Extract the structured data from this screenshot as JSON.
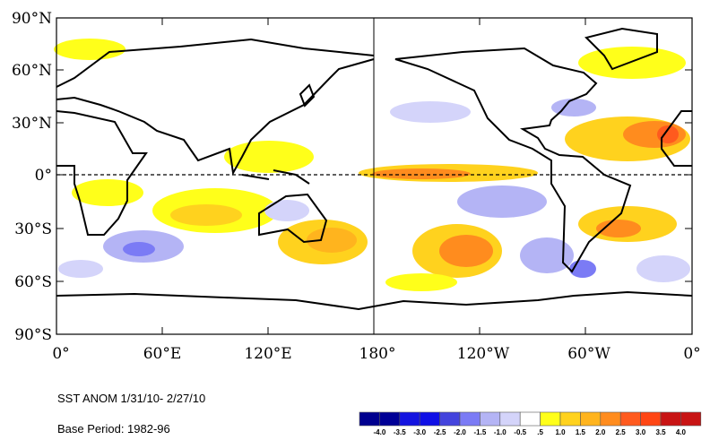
{
  "map": {
    "lat_labels": [
      "90°N",
      "60°N",
      "30°N",
      "0°",
      "30°S",
      "60°S",
      "90°S"
    ],
    "lon_labels": [
      "0°",
      "60°E",
      "120°E",
      "180°",
      "120°W",
      "60°W",
      "0°"
    ]
  },
  "caption": {
    "title": "SST ANOM  1/31/10- 2/27/10",
    "base_period": "Base Period: 1982-96"
  },
  "colorbar": {
    "colors": [
      "#00008f",
      "#000096",
      "#1414e0",
      "#1010e6",
      "#4444dd",
      "#7b7bf5",
      "#b4b4f5",
      "#d4d4fa",
      "#ffffff",
      "#ffff1a",
      "#ffd21e",
      "#ffb41e",
      "#ff8c1e",
      "#ff5a1e",
      "#ff4614",
      "#c81414",
      "#c81414"
    ],
    "labels": [
      "-4.0",
      "-3.5",
      "-3.0",
      "-2.5",
      "-2.0",
      "-1.5",
      "-1.0",
      "-0.5",
      ".5",
      "1.0",
      "1.5",
      "2.0",
      "2.5",
      "3.0",
      "3.5",
      "4.0"
    ]
  }
}
